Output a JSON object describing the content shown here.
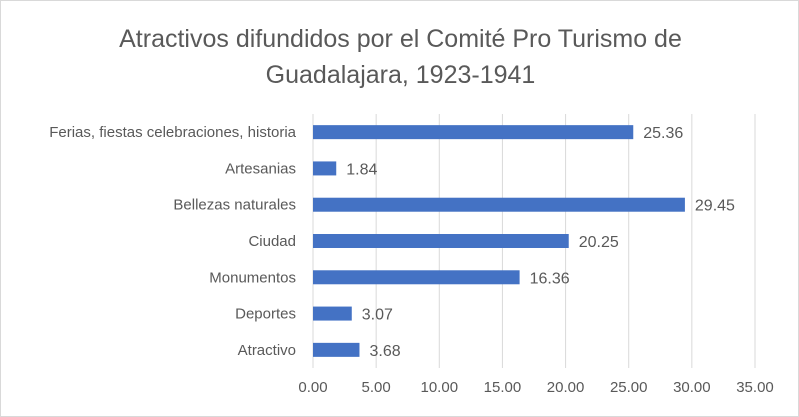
{
  "chart_data": {
    "type": "bar",
    "orientation": "horizontal",
    "title_lines": [
      "Atractivos difundidos por el Comité Pro Turismo de",
      "Guadalajara, 1923-1941"
    ],
    "categories": [
      "Ferias, fiestas celebraciones, historia",
      "Artesanias",
      "Bellezas naturales",
      "Ciudad",
      "Monumentos",
      "Deportes",
      "Atractivo"
    ],
    "values": [
      25.36,
      1.84,
      29.45,
      20.25,
      16.36,
      3.07,
      3.68
    ],
    "data_labels": [
      "25.36",
      "1.84",
      "29.45",
      "20.25",
      "16.36",
      "3.07",
      "3.68"
    ],
    "xticks": [
      "0.00",
      "5.00",
      "10.00",
      "15.00",
      "20.00",
      "25.00",
      "30.00",
      "35.00"
    ],
    "xlim": [
      0,
      35
    ],
    "xlabel": "",
    "ylabel": "",
    "grid": true,
    "legend": "none",
    "bar_color": "#4472C4",
    "grid_color": "#d9d9d9"
  }
}
